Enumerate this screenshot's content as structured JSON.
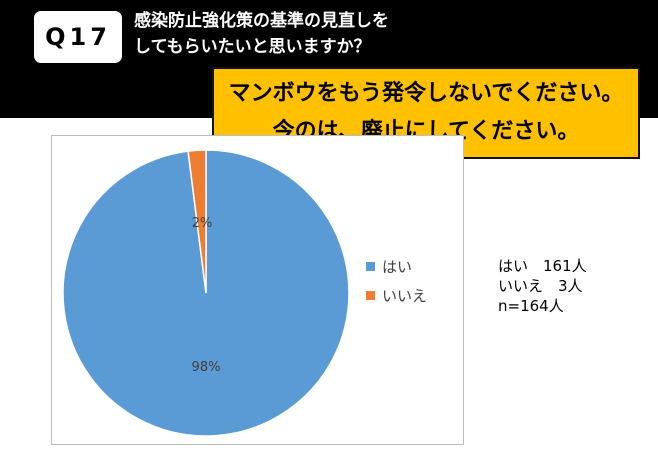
{
  "header": {
    "badge": "Q17",
    "question_line1": "感染防止強化策の基準の見直しを",
    "question_line2": "してもらいたいと思いますか？"
  },
  "banner": {
    "line1": "マンボウをもう発令しないでください。",
    "line2": "今のは、廃止にしてください。"
  },
  "chart_data": {
    "type": "pie",
    "categories": [
      "はい",
      "いいえ"
    ],
    "values": [
      98,
      2
    ],
    "value_labels": [
      "98%",
      "2%"
    ],
    "colors": [
      "#5b9bd5",
      "#ed7d31"
    ],
    "legend_position": "right"
  },
  "stats": {
    "line1": "はい　161人",
    "line2": "いいえ　3人",
    "line3": "n=164人"
  }
}
